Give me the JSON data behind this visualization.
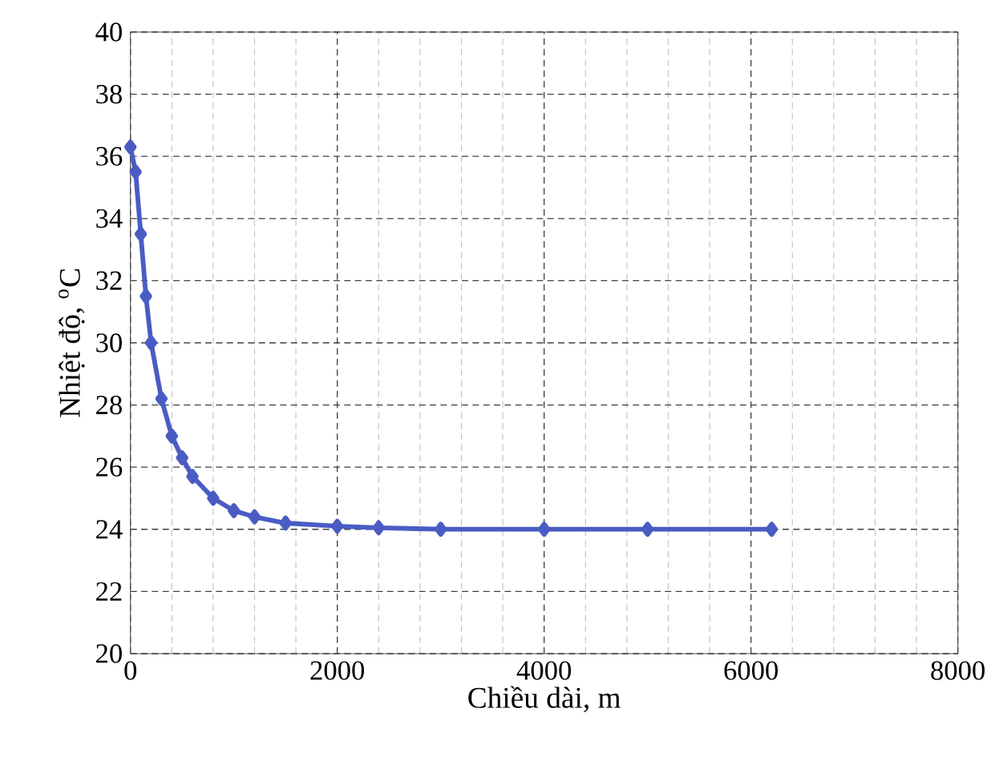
{
  "chart_data": {
    "type": "line",
    "xlabel": "Chiều dài, m",
    "ylabel": "Nhiệt độ, $^{o}$C",
    "x": [
      0,
      50,
      100,
      150,
      200,
      300,
      400,
      500,
      600,
      800,
      1000,
      1200,
      1500,
      2000,
      2400,
      3000,
      4000,
      5000,
      6200
    ],
    "series": [
      {
        "color": "#4a5cc4",
        "values": [
          36.3,
          35.5,
          33.5,
          31.5,
          30.0,
          28.2,
          27.0,
          26.3,
          25.7,
          25.0,
          24.6,
          24.4,
          24.2,
          24.1,
          24.05,
          24.0,
          24.0,
          24.0,
          24.0
        ]
      }
    ],
    "xlim": [
      0,
      8000
    ],
    "xticks": [
      0,
      2000,
      4000,
      6000,
      8000
    ],
    "ylim": [
      20,
      40
    ],
    "yticks": [
      20,
      22,
      24,
      26,
      28,
      30,
      32,
      34,
      36,
      38,
      40
    ],
    "grid": true,
    "marker": "diamond",
    "line_style": "solid"
  }
}
